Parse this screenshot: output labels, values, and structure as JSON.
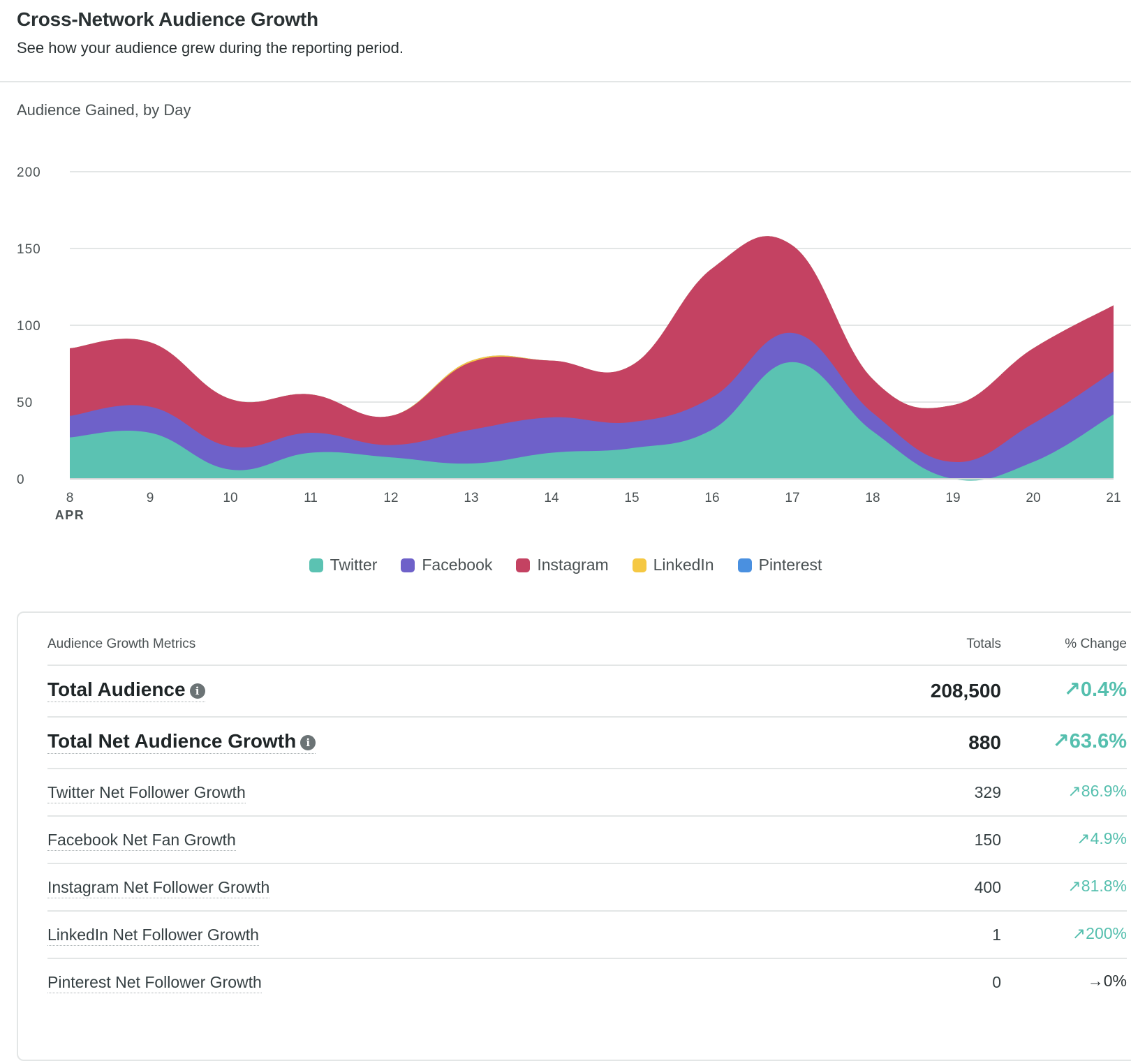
{
  "header": {
    "title": "Cross-Network Audience Growth",
    "subtitle": "See how your audience grew during the reporting period."
  },
  "chart_data": {
    "type": "area",
    "stacked": true,
    "title": "Audience Gained, by Day",
    "x": [
      8,
      9,
      10,
      11,
      12,
      13,
      14,
      15,
      16,
      17,
      18,
      19,
      20,
      21
    ],
    "x_tick_labels": [
      "8",
      "9",
      "10",
      "11",
      "12",
      "13",
      "14",
      "15",
      "16",
      "17",
      "18",
      "19",
      "20",
      "21"
    ],
    "x_month_label": "APR",
    "ylim": [
      0,
      200
    ],
    "y_ticks": [
      0,
      50,
      100,
      150,
      200
    ],
    "grid": true,
    "legend_position": "bottom-center",
    "series": [
      {
        "name": "Twitter",
        "color": "#5bc2b2",
        "values": [
          27,
          30,
          6,
          17,
          14,
          10,
          17,
          20,
          32,
          76,
          31,
          0,
          11,
          42
        ]
      },
      {
        "name": "Facebook",
        "color": "#6e61c9",
        "values": [
          14,
          17,
          15,
          13,
          8,
          22,
          23,
          17,
          21,
          19,
          12,
          11,
          25,
          28
        ]
      },
      {
        "name": "Instagram",
        "color": "#c44262",
        "values": [
          44,
          42,
          31,
          25,
          19,
          44,
          37,
          37,
          84,
          57,
          22,
          37,
          49,
          43
        ]
      },
      {
        "name": "LinkedIn",
        "color": "#f5c843",
        "values": [
          0,
          0,
          0,
          0,
          0,
          1,
          0,
          0,
          0,
          0,
          0,
          0,
          0,
          0
        ]
      },
      {
        "name": "Pinterest",
        "color": "#4a90e0",
        "values": [
          0,
          0,
          0,
          0,
          0,
          0,
          0,
          0,
          0,
          0,
          0,
          0,
          0,
          0
        ]
      }
    ]
  },
  "metrics": {
    "headers": {
      "metric": "Audience Growth Metrics",
      "totals": "Totals",
      "change": "% Change"
    },
    "rows": [
      {
        "label": "Total Audience",
        "total": "208,500",
        "change": "↗0.4%"
      },
      {
        "label": "Total Net Audience Growth",
        "total": "880",
        "change": "↗63.6%"
      },
      {
        "label": "Twitter Net Follower Growth",
        "total": "329",
        "change": "↗86.9%"
      },
      {
        "label": "Facebook Net Fan Growth",
        "total": "150",
        "change": "↗4.9%"
      },
      {
        "label": "Instagram Net Follower Growth",
        "total": "400",
        "change": "↗81.8%"
      },
      {
        "label": "LinkedIn Net Follower Growth",
        "total": "1",
        "change": "↗200%"
      },
      {
        "label": "Pinterest Net Follower Growth",
        "total": "0",
        "change": "→0%"
      }
    ],
    "info_icon_glyph": "i"
  }
}
